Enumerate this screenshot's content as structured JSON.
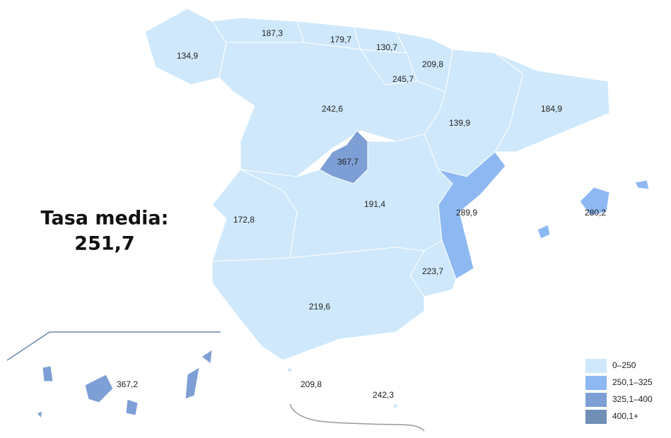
{
  "summary": {
    "label": "Tasa media:",
    "value": "251,7"
  },
  "regions": [
    {
      "label": "134,9",
      "color": "#cfe8fb"
    },
    {
      "label": "187,3",
      "color": "#cfe8fb"
    },
    {
      "label": "179,7",
      "color": "#cfe8fb"
    },
    {
      "label": "130,7",
      "color": "#cfe8fb"
    },
    {
      "label": "209,8",
      "color": "#cfe8fb"
    },
    {
      "label": "245,7",
      "color": "#cfe8fb"
    },
    {
      "label": "139,9",
      "color": "#cfe8fb"
    },
    {
      "label": "184,9",
      "color": "#cfe8fb"
    },
    {
      "label": "242,6",
      "color": "#cfe8fb"
    },
    {
      "label": "367,7",
      "color": "#7d9fd5"
    },
    {
      "label": "191,4",
      "color": "#cfe8fb"
    },
    {
      "label": "172,8",
      "color": "#cfe8fb"
    },
    {
      "label": "289,9",
      "color": "#8db8f2"
    },
    {
      "label": "223,7",
      "color": "#cfe8fb"
    },
    {
      "label": "219,6",
      "color": "#cfe8fb"
    },
    {
      "label": "280,2",
      "color": "#8db8f2"
    },
    {
      "label": "367,2",
      "color": "#7d9fd5"
    },
    {
      "label": "209,8",
      "color": "#cfe8fb"
    },
    {
      "label": "242,3",
      "color": "#cfe8fb"
    }
  ],
  "legend": [
    {
      "label": "0–250",
      "color": "#cfe8fb"
    },
    {
      "label": "250,1–325",
      "color": "#8db8f2"
    },
    {
      "label": "325,1–400",
      "color": "#7d9fd5"
    },
    {
      "label": "400,1+",
      "color": "#6f8fb5"
    }
  ]
}
